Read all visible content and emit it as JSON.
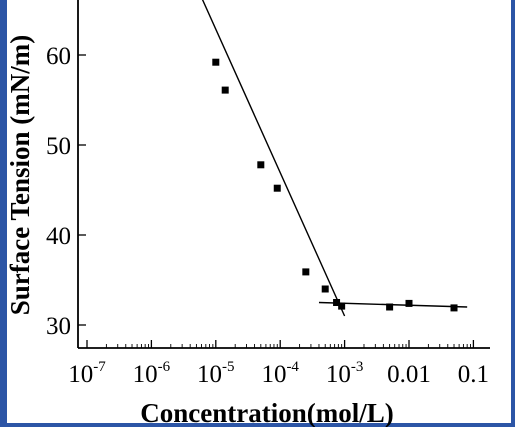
{
  "chart_data": {
    "type": "scatter",
    "xlabel": "Concentration(mol/L)",
    "ylabel": "Surface Tension (mN/m)",
    "xscale": "log",
    "xlim": [
      1e-07,
      0.1
    ],
    "ylim": [
      28,
      73
    ],
    "x_ticks": [
      {
        "value": 1e-07,
        "base": "10",
        "exp": "-7"
      },
      {
        "value": 1e-06,
        "base": "10",
        "exp": "-6"
      },
      {
        "value": 1e-05,
        "base": "10",
        "exp": "-5"
      },
      {
        "value": 0.0001,
        "base": "10",
        "exp": "-4"
      },
      {
        "value": 0.001,
        "base": "10",
        "exp": "-3"
      },
      {
        "value": 0.01,
        "base": "0.01",
        "exp": ""
      },
      {
        "value": 0.1,
        "base": "0.1",
        "exp": ""
      }
    ],
    "y_ticks": [
      30,
      40,
      50,
      60
    ],
    "points": [
      {
        "x": 1e-05,
        "y": 59.2
      },
      {
        "x": 1.4e-05,
        "y": 56.1
      },
      {
        "x": 5e-05,
        "y": 47.8
      },
      {
        "x": 9e-05,
        "y": 45.2
      },
      {
        "x": 0.00025,
        "y": 35.9
      },
      {
        "x": 0.0005,
        "y": 34.0
      },
      {
        "x": 0.00075,
        "y": 32.5
      },
      {
        "x": 0.0009,
        "y": 32.1
      },
      {
        "x": 0.005,
        "y": 32.0
      },
      {
        "x": 0.01,
        "y": 32.4
      },
      {
        "x": 0.05,
        "y": 31.9
      }
    ],
    "fit_lines": [
      {
        "x": [
          2e-06,
          0.001
        ],
        "y": [
          74.0,
          31.0
        ]
      },
      {
        "x": [
          0.0004,
          0.08
        ],
        "y": [
          32.5,
          32.0
        ]
      }
    ],
    "grid": false,
    "legend": "none"
  },
  "colors": {
    "frame_stripe": "#2c55a6",
    "axis": "#000000",
    "marker": "#000000"
  }
}
